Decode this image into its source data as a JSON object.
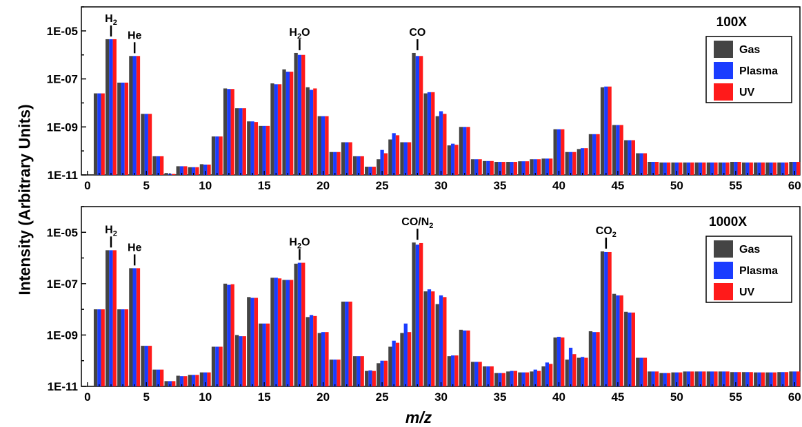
{
  "figure": {
    "ylabel": "Intensity (Arbitrary Units)",
    "xlabel": "m/z"
  },
  "chart_data": [
    {
      "type": "bar",
      "title": "100X",
      "scale": "log",
      "ylim": [
        1e-11,
        0.0001
      ],
      "yticks": [
        "1E-11",
        "1E-09",
        "1E-07",
        "1E-05"
      ],
      "yticks_values": [
        1e-11,
        1e-09,
        1e-07,
        1e-05
      ],
      "xlim": [
        0,
        60
      ],
      "xticks": [
        0,
        5,
        10,
        15,
        20,
        25,
        30,
        35,
        40,
        45,
        50,
        55,
        60
      ],
      "legend_position": "top-right",
      "colors": {
        "Gas": "#444444",
        "Plasma": "#1a3cff",
        "UV": "#ff1a1a"
      },
      "x": [
        1,
        2,
        3,
        4,
        5,
        6,
        7,
        8,
        9,
        10,
        11,
        12,
        13,
        14,
        15,
        16,
        17,
        18,
        19,
        20,
        21,
        22,
        23,
        24,
        25,
        26,
        27,
        28,
        29,
        30,
        31,
        32,
        33,
        34,
        35,
        36,
        37,
        38,
        39,
        40,
        41,
        42,
        43,
        44,
        45,
        46,
        47,
        48,
        49,
        50,
        51,
        52,
        53,
        54,
        55,
        56,
        57,
        58,
        59,
        60
      ],
      "series": [
        {
          "name": "Gas",
          "values": [
            2.5e-08,
            4.5e-06,
            7e-08,
            9e-07,
            3.5e-09,
            6e-11,
            1.2e-11,
            2.3e-11,
            2.1e-11,
            2.8e-11,
            4e-10,
            4e-08,
            6e-09,
            1.7e-09,
            1.1e-09,
            6.5e-08,
            2.5e-07,
            1.2e-06,
            4.5e-08,
            2.8e-09,
            9e-11,
            2.3e-10,
            6e-11,
            2.2e-11,
            4.5e-11,
            3e-10,
            2.3e-10,
            1.2e-06,
            2.5e-08,
            2.8e-09,
            1.7e-10,
            1e-09,
            4.5e-11,
            3.8e-11,
            3.5e-11,
            3.5e-11,
            3.7e-11,
            4.5e-11,
            4.8e-11,
            8e-10,
            9e-11,
            1.2e-10,
            5e-10,
            4.5e-08,
            1.2e-09,
            2.8e-10,
            8e-11,
            3.5e-11,
            3.3e-11,
            3.3e-11,
            3.3e-11,
            3.3e-11,
            3.3e-11,
            3.3e-11,
            3.5e-11,
            3.3e-11,
            3.3e-11,
            3.3e-11,
            3.3e-11,
            3.5e-11
          ]
        },
        {
          "name": "Plasma",
          "values": [
            2.5e-08,
            4.5e-06,
            7e-08,
            9e-07,
            3.5e-09,
            6e-11,
            1.1e-11,
            2.3e-11,
            2.1e-11,
            2.7e-11,
            4e-10,
            3.8e-08,
            6e-09,
            1.7e-09,
            1.1e-09,
            6e-08,
            2e-07,
            1e-06,
            3.5e-08,
            2.8e-09,
            9e-11,
            2.3e-10,
            6e-11,
            2.2e-11,
            1.1e-10,
            5.5e-10,
            2.3e-10,
            9e-07,
            2.8e-08,
            4.5e-09,
            2e-10,
            1e-09,
            4.5e-11,
            3.8e-11,
            3.5e-11,
            3.5e-11,
            3.7e-11,
            4.5e-11,
            4.8e-11,
            8e-10,
            9e-11,
            1.3e-10,
            5e-10,
            4.8e-08,
            1.2e-09,
            2.8e-10,
            8e-11,
            3.5e-11,
            3.3e-11,
            3.3e-11,
            3.3e-11,
            3.3e-11,
            3.3e-11,
            3.3e-11,
            3.5e-11,
            3.3e-11,
            3.3e-11,
            3.3e-11,
            3.3e-11,
            3.5e-11
          ]
        },
        {
          "name": "UV",
          "values": [
            2.5e-08,
            4.5e-06,
            7e-08,
            9e-07,
            3.5e-09,
            6e-11,
            1.1e-11,
            2.3e-11,
            2.1e-11,
            2.7e-11,
            4e-10,
            3.8e-08,
            6e-09,
            1.6e-09,
            1.1e-09,
            6e-08,
            2e-07,
            1e-06,
            4e-08,
            2.8e-09,
            9e-11,
            2.3e-10,
            6e-11,
            2.2e-11,
            8e-11,
            4.5e-10,
            2.3e-10,
            9e-07,
            2.8e-08,
            3.5e-09,
            1.8e-10,
            1e-09,
            4.5e-11,
            3.8e-11,
            3.5e-11,
            3.5e-11,
            3.7e-11,
            4.5e-11,
            4.8e-11,
            8e-10,
            9e-11,
            1.3e-10,
            5e-10,
            4.8e-08,
            1.2e-09,
            2.8e-10,
            8e-11,
            3.5e-11,
            3.3e-11,
            3.3e-11,
            3.3e-11,
            3.3e-11,
            3.3e-11,
            3.3e-11,
            3.5e-11,
            3.3e-11,
            3.3e-11,
            3.3e-11,
            3.3e-11,
            3.5e-11
          ]
        }
      ],
      "annotations": [
        {
          "x": 2,
          "main": "H",
          "sub": "2"
        },
        {
          "x": 4,
          "main": "He",
          "sub": ""
        },
        {
          "x": 18,
          "main": "H",
          "sub": "2",
          "tail": "O"
        },
        {
          "x": 28,
          "main": "CO",
          "sub": ""
        }
      ]
    },
    {
      "type": "bar",
      "title": "1000X",
      "scale": "log",
      "ylim": [
        1e-11,
        0.0001
      ],
      "yticks": [
        "1E-11",
        "1E-09",
        "1E-07",
        "1E-05"
      ],
      "yticks_values": [
        1e-11,
        1e-09,
        1e-07,
        1e-05
      ],
      "xlim": [
        0,
        60
      ],
      "xticks": [
        0,
        5,
        10,
        15,
        20,
        25,
        30,
        35,
        40,
        45,
        50,
        55,
        60
      ],
      "legend_position": "top-right",
      "colors": {
        "Gas": "#444444",
        "Plasma": "#1a3cff",
        "UV": "#ff1a1a"
      },
      "x": [
        1,
        2,
        3,
        4,
        5,
        6,
        7,
        8,
        9,
        10,
        11,
        12,
        13,
        14,
        15,
        16,
        17,
        18,
        19,
        20,
        21,
        22,
        23,
        24,
        25,
        26,
        27,
        28,
        29,
        30,
        31,
        32,
        33,
        34,
        35,
        36,
        37,
        38,
        39,
        40,
        41,
        42,
        43,
        44,
        45,
        46,
        47,
        48,
        49,
        50,
        51,
        52,
        53,
        54,
        55,
        56,
        57,
        58,
        59,
        60
      ],
      "series": [
        {
          "name": "Gas",
          "values": [
            1e-08,
            2e-06,
            1e-08,
            4e-07,
            3.8e-10,
            4.5e-11,
            1.6e-11,
            2.6e-11,
            2.8e-11,
            3.5e-11,
            3.5e-10,
            1e-07,
            1e-09,
            3e-08,
            2.8e-09,
            1.7e-07,
            1.4e-07,
            6e-07,
            5e-09,
            1.2e-09,
            1.1e-10,
            2e-08,
            1.5e-10,
            4e-11,
            8e-11,
            3.5e-10,
            1.2e-09,
            4e-06,
            5e-08,
            1.6e-08,
            1.5e-10,
            1.6e-09,
            9e-11,
            6e-11,
            3.3e-11,
            3.8e-11,
            3.5e-11,
            3.8e-11,
            6e-11,
            8e-10,
            1.1e-10,
            1.3e-10,
            1.4e-09,
            1.8e-06,
            4e-08,
            8e-09,
            1.3e-10,
            3.8e-11,
            3.3e-11,
            3.5e-11,
            3.8e-11,
            3.8e-11,
            3.8e-11,
            3.8e-11,
            3.6e-11,
            3.6e-11,
            3.5e-11,
            3.5e-11,
            3.6e-11,
            3.8e-11
          ]
        },
        {
          "name": "Plasma",
          "values": [
            1e-08,
            2e-06,
            1e-08,
            4e-07,
            3.8e-10,
            4.5e-11,
            1.6e-11,
            2.5e-11,
            2.8e-11,
            3.5e-11,
            3.5e-10,
            9e-08,
            9e-10,
            2.8e-08,
            2.8e-09,
            1.7e-07,
            1.4e-07,
            6.5e-07,
            6e-09,
            1.3e-09,
            1.1e-10,
            2e-08,
            1.5e-10,
            4.2e-11,
            1e-10,
            6e-10,
            2.8e-09,
            3.3e-06,
            6e-08,
            3.5e-08,
            1.6e-10,
            1.5e-09,
            9e-11,
            6e-11,
            3.3e-11,
            4e-11,
            3.5e-11,
            4.5e-11,
            8.5e-11,
            8.5e-10,
            3.2e-10,
            1.4e-10,
            1.3e-09,
            1.7e-06,
            3.5e-08,
            7.5e-09,
            1.3e-10,
            3.8e-11,
            3.3e-11,
            3.5e-11,
            3.8e-11,
            3.8e-11,
            3.8e-11,
            3.8e-11,
            3.6e-11,
            3.6e-11,
            3.5e-11,
            3.5e-11,
            3.6e-11,
            3.8e-11
          ]
        },
        {
          "name": "UV",
          "values": [
            1e-08,
            2e-06,
            1e-08,
            4e-07,
            3.8e-10,
            4.5e-11,
            1.6e-11,
            2.5e-11,
            2.8e-11,
            3.5e-11,
            3.5e-10,
            9.5e-08,
            9e-10,
            2.8e-08,
            2.8e-09,
            1.6e-07,
            1.4e-07,
            6.5e-07,
            5.5e-09,
            1.3e-09,
            1.1e-10,
            2e-08,
            1.5e-10,
            4e-11,
            1e-10,
            5e-10,
            1.3e-09,
            3.8e-06,
            5e-08,
            3e-08,
            1.6e-10,
            1.5e-09,
            9e-11,
            6e-11,
            3.3e-11,
            4e-11,
            3.5e-11,
            4e-11,
            7.5e-11,
            8e-10,
            1.8e-10,
            1.3e-10,
            1.3e-09,
            1.7e-06,
            3.5e-08,
            7.5e-09,
            1.3e-10,
            3.8e-11,
            3.3e-11,
            3.5e-11,
            3.8e-11,
            3.8e-11,
            3.8e-11,
            3.8e-11,
            3.6e-11,
            3.6e-11,
            3.5e-11,
            3.5e-11,
            3.6e-11,
            3.8e-11
          ]
        }
      ],
      "annotations": [
        {
          "x": 2,
          "main": "H",
          "sub": "2"
        },
        {
          "x": 4,
          "main": "He",
          "sub": ""
        },
        {
          "x": 18,
          "main": "H",
          "sub": "2",
          "tail": "O"
        },
        {
          "x": 28,
          "main": "CO/N",
          "sub": "2"
        },
        {
          "x": 44,
          "main": "CO",
          "sub": "2"
        }
      ]
    }
  ]
}
